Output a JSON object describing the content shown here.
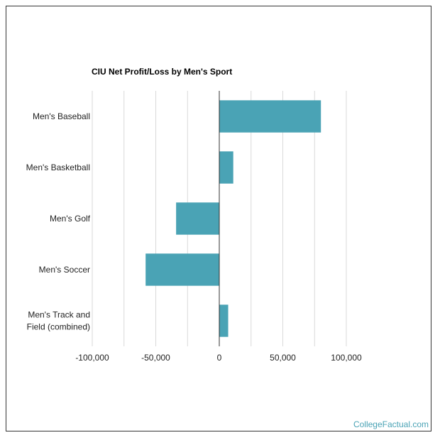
{
  "chart_data": {
    "type": "bar",
    "orientation": "horizontal",
    "title": "CIU Net Profit/Loss by Men's Sport",
    "categories": [
      "Men's Baseball",
      "Men's Basketball",
      "Men's Golf",
      "Men's Soccer",
      "Men's Track and Field (combined)"
    ],
    "category_lines": [
      [
        "Men's Baseball"
      ],
      [
        "Men's Basketball"
      ],
      [
        "Men's Golf"
      ],
      [
        "Men's Soccer"
      ],
      [
        "Men's Track and",
        "Field (combined)"
      ]
    ],
    "values": [
      80000,
      11000,
      -34000,
      -58000,
      7000
    ],
    "xlim": [
      -100000,
      100000
    ],
    "xticks": [
      -100000,
      -50000,
      0,
      50000,
      100000
    ],
    "xtick_labels": [
      "-100,000",
      "-50,000",
      "0",
      "50,000",
      "100,000"
    ],
    "grid": true,
    "bar_color": "#4aa3b5"
  },
  "footer": {
    "brand": "CollegeFactual.com"
  }
}
